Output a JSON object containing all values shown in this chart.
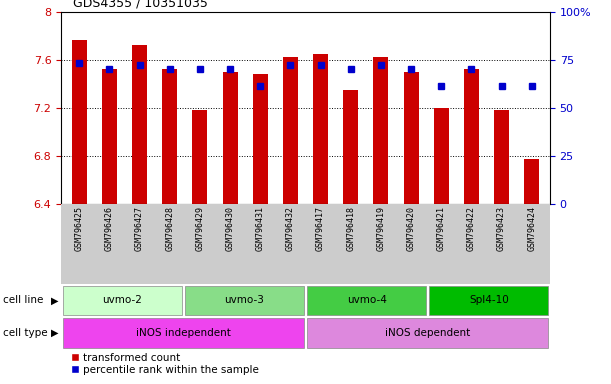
{
  "title": "GDS4355 / 10351035",
  "samples": [
    "GSM796425",
    "GSM796426",
    "GSM796427",
    "GSM796428",
    "GSM796429",
    "GSM796430",
    "GSM796431",
    "GSM796432",
    "GSM796417",
    "GSM796418",
    "GSM796419",
    "GSM796420",
    "GSM796421",
    "GSM796422",
    "GSM796423",
    "GSM796424"
  ],
  "red_values_all": [
    7.76,
    7.52,
    7.72,
    7.52,
    7.18,
    7.5,
    7.48,
    7.62,
    7.65,
    7.35,
    7.62,
    7.5,
    7.2,
    7.52,
    7.18,
    6.77
  ],
  "blue_values": [
    7.575,
    7.525,
    7.555,
    7.525,
    7.525,
    7.525,
    7.38,
    7.555,
    7.555,
    7.525,
    7.555,
    7.525,
    7.38,
    7.525,
    7.38,
    7.38
  ],
  "ylim": [
    6.4,
    8.0
  ],
  "y2lim": [
    0,
    100
  ],
  "yticks_left": [
    6.4,
    6.8,
    7.2,
    7.6,
    8.0
  ],
  "ytick_labels_left": [
    "6.4",
    "6.8",
    "7.2",
    "7.6",
    "8"
  ],
  "yticks_right": [
    0,
    25,
    50,
    75,
    100
  ],
  "ytick_labels_right": [
    "0",
    "25",
    "50",
    "75",
    "100%"
  ],
  "bar_color": "#CC0000",
  "dot_color": "#0000CC",
  "cell_line_groups": [
    {
      "label": "uvmo-2",
      "start": 0,
      "end": 3,
      "color": "#ccffcc"
    },
    {
      "label": "uvmo-3",
      "start": 4,
      "end": 7,
      "color": "#88dd88"
    },
    {
      "label": "uvmo-4",
      "start": 8,
      "end": 11,
      "color": "#44cc44"
    },
    {
      "label": "Spl4-10",
      "start": 12,
      "end": 15,
      "color": "#00bb00"
    }
  ],
  "cell_type_groups": [
    {
      "label": "iNOS independent",
      "start": 0,
      "end": 7,
      "color": "#ee44ee"
    },
    {
      "label": "iNOS dependent",
      "start": 8,
      "end": 15,
      "color": "#dd88dd"
    }
  ],
  "tick_area_bg": "#cccccc",
  "left_color": "#CC0000",
  "right_color": "#0000CC"
}
